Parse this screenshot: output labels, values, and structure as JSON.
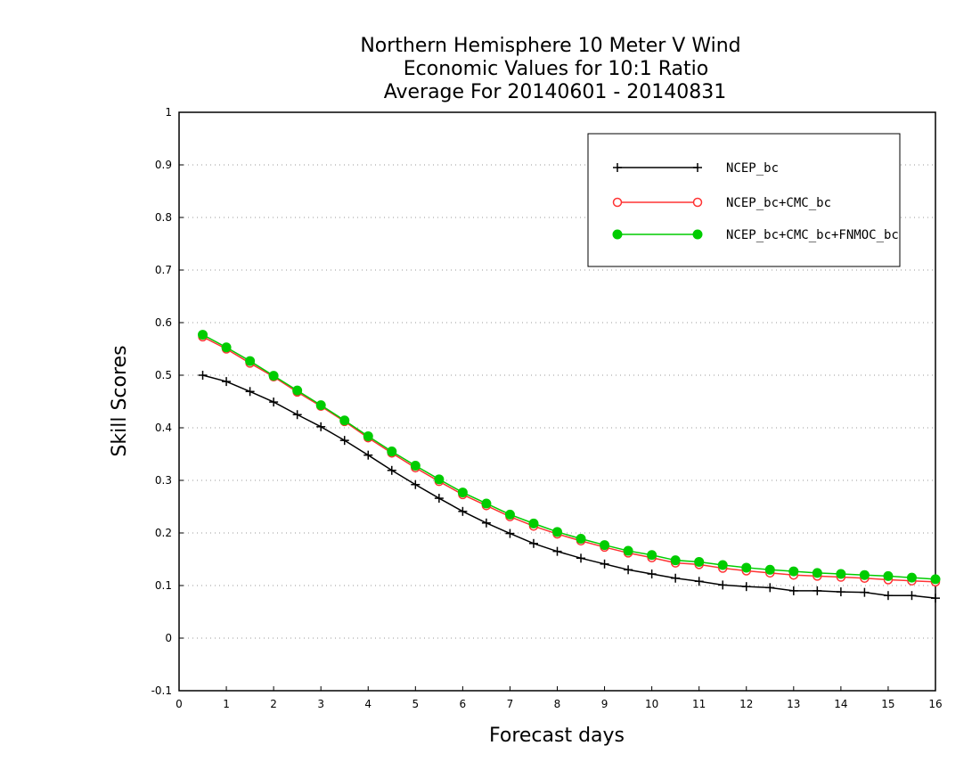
{
  "chart_data": {
    "type": "line",
    "title": [
      "Northern Hemisphere 10 Meter V Wind",
      "Economic Values for 10:1 Ratio",
      "Average For 20140601 - 20140831"
    ],
    "xlabel": "Forecast days",
    "ylabel": "Skill Scores",
    "xlim": [
      0,
      16
    ],
    "ylim": [
      -0.1,
      1
    ],
    "x_ticks": [
      "0",
      "1",
      "2",
      "3",
      "4",
      "5",
      "6",
      "7",
      "8",
      "9",
      "10",
      "11",
      "12",
      "13",
      "14",
      "15",
      "16"
    ],
    "y_ticks": [
      "-0.1",
      "0",
      "0.1",
      "0.2",
      "0.3",
      "0.4",
      "0.5",
      "0.6",
      "0.7",
      "0.8",
      "0.9",
      "1"
    ],
    "grid": true,
    "legend_position": "top-right",
    "x": [
      0.5,
      1,
      1.5,
      2,
      2.5,
      3,
      3.5,
      4,
      4.5,
      5,
      5.5,
      6,
      6.5,
      7,
      7.5,
      8,
      8.5,
      9,
      9.5,
      10,
      10.5,
      11,
      11.5,
      12,
      12.5,
      13,
      13.5,
      14,
      14.5,
      15,
      15.5,
      16
    ],
    "series": [
      {
        "name": "NCEP_bc",
        "color": "#000000",
        "marker": "plus",
        "values": [
          0.5,
          0.488,
          0.469,
          0.449,
          0.425,
          0.402,
          0.376,
          0.348,
          0.319,
          0.292,
          0.266,
          0.241,
          0.219,
          0.199,
          0.18,
          0.165,
          0.152,
          0.141,
          0.13,
          0.122,
          0.114,
          0.108,
          0.101,
          0.098,
          0.096,
          0.09,
          0.09,
          0.088,
          0.087,
          0.081,
          0.081,
          0.076
        ]
      },
      {
        "name": "NCEP_bc+CMC_bc",
        "color": "#ff3333",
        "marker": "open-circle",
        "values": [
          0.573,
          0.55,
          0.523,
          0.497,
          0.468,
          0.441,
          0.412,
          0.381,
          0.352,
          0.324,
          0.298,
          0.273,
          0.252,
          0.231,
          0.213,
          0.198,
          0.185,
          0.173,
          0.162,
          0.153,
          0.143,
          0.14,
          0.133,
          0.128,
          0.124,
          0.12,
          0.118,
          0.116,
          0.114,
          0.111,
          0.109,
          0.107
        ]
      },
      {
        "name": "NCEP_bc+CMC_bc+FNMOC_bc",
        "color": "#00cc00",
        "marker": "filled-circle",
        "values": [
          0.577,
          0.553,
          0.527,
          0.499,
          0.471,
          0.443,
          0.414,
          0.384,
          0.355,
          0.328,
          0.302,
          0.277,
          0.256,
          0.235,
          0.218,
          0.202,
          0.189,
          0.177,
          0.166,
          0.158,
          0.148,
          0.145,
          0.139,
          0.134,
          0.13,
          0.127,
          0.124,
          0.122,
          0.12,
          0.118,
          0.115,
          0.112
        ]
      }
    ]
  }
}
